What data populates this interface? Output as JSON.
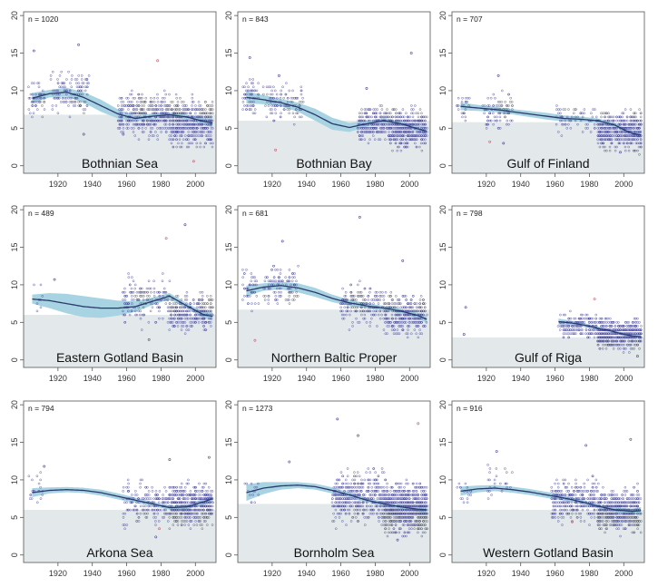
{
  "colors": {
    "background_band": "#e3e9ea",
    "ci_band": "#a7d3e3",
    "trend_line": "#2b3a6b",
    "points": "#4a4a9a",
    "points_highlight": "#c06070",
    "frame": "#555555"
  },
  "chart_data": [
    {
      "type": "scatter",
      "title": "Bothnian Sea",
      "n_label": "n =",
      "n": "1020",
      "xlim": [
        1900,
        2012
      ],
      "ylim": [
        -1,
        20.5
      ],
      "xticks": [
        1920,
        1940,
        1960,
        1980,
        2000
      ],
      "yticks": [
        0,
        5,
        10,
        15,
        20
      ],
      "band_level": 6.8,
      "trend": {
        "x": [
          1905,
          1915,
          1925,
          1935,
          1945,
          1955,
          1965,
          1975,
          1985,
          1995,
          2005,
          2010
        ],
        "y": [
          9.0,
          9.6,
          9.8,
          9.1,
          8.0,
          6.9,
          6.3,
          6.6,
          6.8,
          6.5,
          5.9,
          5.7
        ],
        "ci": [
          0.7,
          0.5,
          0.6,
          0.7,
          0.8,
          0.6,
          0.4,
          0.35,
          0.3,
          0.3,
          0.45,
          0.6
        ]
      },
      "points": {
        "clusters": [
          [
            1903,
            1912,
            9.0,
            1.4,
            55
          ],
          [
            1915,
            1938,
            9.8,
            1.8,
            130
          ],
          [
            1955,
            1985,
            6.8,
            1.8,
            380
          ],
          [
            1985,
            2010,
            5.7,
            2.1,
            460
          ]
        ],
        "outliers": [
          [
            1906,
            15.3
          ],
          [
            1932,
            16.1
          ],
          [
            1978,
            14.0
          ],
          [
            1935,
            4.2
          ],
          [
            1958,
            4.2
          ],
          [
            1999,
            0.6
          ]
        ]
      }
    },
    {
      "type": "scatter",
      "title": "Bothnian Bay",
      "n_label": "n =",
      "n": "843",
      "xlim": [
        1900,
        2012
      ],
      "ylim": [
        -1,
        20.5
      ],
      "xticks": [
        1920,
        1940,
        1960,
        1980,
        2000
      ],
      "yticks": [
        0,
        5,
        10,
        15,
        20
      ],
      "band_level": 6.0,
      "trend": {
        "x": [
          1905,
          1915,
          1925,
          1935,
          1945,
          1955,
          1965,
          1975,
          1985,
          1995,
          2005,
          2010
        ],
        "y": [
          9.1,
          8.8,
          8.4,
          7.8,
          6.8,
          5.6,
          5.1,
          5.6,
          6.0,
          5.6,
          4.9,
          4.6
        ],
        "ci": [
          0.8,
          0.6,
          0.5,
          0.6,
          0.8,
          0.8,
          0.6,
          0.4,
          0.35,
          0.3,
          0.4,
          0.6
        ]
      },
      "points": {
        "clusters": [
          [
            1903,
            1912,
            9.3,
            2.0,
            60
          ],
          [
            1915,
            1938,
            8.5,
            1.8,
            110
          ],
          [
            1970,
            1988,
            5.6,
            1.5,
            220
          ],
          [
            1988,
            2010,
            4.9,
            1.7,
            420
          ]
        ],
        "outliers": [
          [
            1907,
            14.4
          ],
          [
            1924,
            12.0
          ],
          [
            1922,
            2.1
          ],
          [
            2001,
            15.0
          ],
          [
            1975,
            10.3
          ]
        ]
      }
    },
    {
      "type": "scatter",
      "title": "Gulf of Finland",
      "n_label": "n =",
      "n": "707",
      "xlim": [
        1900,
        2012
      ],
      "ylim": [
        -1,
        20.5
      ],
      "xticks": [
        1920,
        1940,
        1960,
        1980,
        2000
      ],
      "yticks": [
        0,
        5,
        10,
        15,
        20
      ],
      "band_level": 5.8,
      "trend": {
        "x": [
          1905,
          1915,
          1925,
          1935,
          1945,
          1955,
          1965,
          1975,
          1985,
          1995,
          2000,
          2005,
          2010
        ],
        "y": [
          7.9,
          7.7,
          7.5,
          7.2,
          6.9,
          6.6,
          6.3,
          6.2,
          6.0,
          5.4,
          4.8,
          4.3,
          4.1
        ],
        "ci": [
          0.5,
          0.4,
          0.35,
          0.35,
          0.4,
          0.45,
          0.4,
          0.35,
          0.3,
          0.3,
          0.3,
          0.35,
          0.5
        ]
      },
      "points": {
        "clusters": [
          [
            1903,
            1910,
            8.0,
            1.3,
            25
          ],
          [
            1918,
            1935,
            7.2,
            1.7,
            95
          ],
          [
            1960,
            1985,
            6.1,
            1.2,
            70
          ],
          [
            1985,
            2010,
            4.7,
            1.6,
            470
          ]
        ],
        "outliers": [
          [
            1927,
            12.0
          ],
          [
            1930,
            3.0
          ],
          [
            1922,
            3.2
          ],
          [
            1998,
            1.8
          ]
        ]
      }
    },
    {
      "type": "scatter",
      "title": "Eastern Gotland Basin",
      "n_label": "n =",
      "n": "489",
      "xlim": [
        1900,
        2012
      ],
      "ylim": [
        -1,
        20.5
      ],
      "xticks": [
        1920,
        1940,
        1960,
        1980,
        2000
      ],
      "yticks": [
        0,
        5,
        10,
        15,
        20
      ],
      "band_level": 6.0,
      "trend": {
        "x": [
          1905,
          1915,
          1925,
          1935,
          1945,
          1955,
          1965,
          1975,
          1985,
          1995,
          2005,
          2010
        ],
        "y": [
          8.1,
          7.9,
          7.5,
          7.1,
          6.9,
          6.9,
          7.1,
          7.8,
          8.5,
          7.2,
          6.0,
          5.8
        ],
        "ci": [
          0.6,
          1.0,
          1.3,
          1.4,
          1.3,
          1.0,
          0.7,
          0.5,
          0.4,
          0.35,
          0.4,
          0.55
        ]
      },
      "points": {
        "clusters": [
          [
            1905,
            1912,
            8.0,
            1.2,
            8
          ],
          [
            1958,
            1985,
            8.0,
            2.0,
            160
          ],
          [
            1985,
            2010,
            6.2,
            1.5,
            300
          ]
        ],
        "outliers": [
          [
            1918,
            10.7
          ],
          [
            1994,
            18.0
          ],
          [
            1983,
            16.2
          ],
          [
            1973,
            2.7
          ]
        ]
      }
    },
    {
      "type": "scatter",
      "title": "Northern Baltic Proper",
      "n_label": "n =",
      "n": "681",
      "xlim": [
        1900,
        2012
      ],
      "ylim": [
        -1,
        20.5
      ],
      "xticks": [
        1920,
        1940,
        1960,
        1980,
        2000
      ],
      "yticks": [
        0,
        5,
        10,
        15,
        20
      ],
      "band_level": 6.7,
      "trend": {
        "x": [
          1905,
          1915,
          1925,
          1935,
          1945,
          1955,
          1965,
          1975,
          1985,
          1995,
          2005,
          2010
        ],
        "y": [
          9.2,
          9.7,
          9.9,
          9.6,
          9.0,
          8.2,
          7.6,
          7.2,
          6.9,
          6.5,
          5.9,
          5.4
        ],
        "ci": [
          0.7,
          0.5,
          0.5,
          0.6,
          0.6,
          0.5,
          0.4,
          0.35,
          0.3,
          0.3,
          0.35,
          0.5
        ]
      },
      "points": {
        "clusters": [
          [
            1903,
            1912,
            9.5,
            1.8,
            45
          ],
          [
            1915,
            1935,
            10.0,
            1.8,
            110
          ],
          [
            1960,
            1985,
            7.5,
            1.8,
            190
          ],
          [
            1985,
            2010,
            6.0,
            1.7,
            330
          ]
        ],
        "outliers": [
          [
            1971,
            19.0
          ],
          [
            1926,
            15.8
          ],
          [
            1910,
            2.6
          ],
          [
            1996,
            13.2
          ]
        ]
      }
    },
    {
      "type": "scatter",
      "title": "Gulf of Riga",
      "n_label": "n =",
      "n": "798",
      "xlim": [
        1900,
        2012
      ],
      "ylim": [
        -1,
        20.5
      ],
      "xticks": [
        1920,
        1940,
        1960,
        1980,
        2000
      ],
      "yticks": [
        0,
        5,
        10,
        15,
        20
      ],
      "band_level": 3.0,
      "trend": {
        "x": [
          1962,
          1970,
          1978,
          1985,
          1992,
          2000,
          2005,
          2010
        ],
        "y": [
          5.1,
          4.9,
          4.6,
          4.2,
          3.9,
          3.4,
          3.2,
          3.1
        ],
        "ci": [
          0.4,
          0.3,
          0.25,
          0.25,
          0.2,
          0.2,
          0.25,
          0.35
        ]
      },
      "points": {
        "clusters": [
          [
            1962,
            1985,
            4.6,
            1.1,
            180
          ],
          [
            1985,
            2010,
            3.4,
            1.2,
            560
          ]
        ],
        "outliers": [
          [
            1908,
            7.0
          ],
          [
            1907,
            3.4
          ],
          [
            1983,
            8.1
          ],
          [
            2008,
            0.5
          ]
        ]
      }
    },
    {
      "type": "scatter",
      "title": "Arkona Sea",
      "n_label": "n =",
      "n": "794",
      "xlim": [
        1900,
        2012
      ],
      "ylim": [
        -1,
        20.5
      ],
      "xticks": [
        1920,
        1940,
        1960,
        1980,
        2000
      ],
      "yticks": [
        0,
        5,
        10,
        15,
        20
      ],
      "band_level": 6.0,
      "trend": {
        "x": [
          1905,
          1915,
          1925,
          1935,
          1945,
          1955,
          1965,
          1975,
          1985,
          1995,
          2005,
          2010
        ],
        "y": [
          8.3,
          8.6,
          8.7,
          8.6,
          8.3,
          7.8,
          7.3,
          6.8,
          6.3,
          6.4,
          7.1,
          7.5
        ],
        "ci": [
          0.6,
          0.4,
          0.35,
          0.35,
          0.4,
          0.4,
          0.35,
          0.3,
          0.3,
          0.3,
          0.4,
          0.5
        ]
      },
      "points": {
        "clusters": [
          [
            1903,
            1912,
            8.5,
            1.3,
            20
          ],
          [
            1958,
            1985,
            6.8,
            1.8,
            180
          ],
          [
            1985,
            2010,
            6.7,
            1.8,
            500
          ]
        ],
        "outliers": [
          [
            1912,
            11.8
          ],
          [
            1977,
            2.4
          ],
          [
            1979,
            3.5
          ],
          [
            2008,
            13.0
          ],
          [
            1985,
            12.7
          ]
        ]
      }
    },
    {
      "type": "scatter",
      "title": "Bornholm Sea",
      "n_label": "n =",
      "n": "1273",
      "xlim": [
        1900,
        2012
      ],
      "ylim": [
        -1,
        20.5
      ],
      "xticks": [
        1920,
        1940,
        1960,
        1980,
        2000
      ],
      "yticks": [
        0,
        5,
        10,
        15,
        20
      ],
      "band_level": 6.8,
      "trend": {
        "x": [
          1905,
          1915,
          1925,
          1935,
          1945,
          1955,
          1965,
          1975,
          1985,
          1995,
          2005,
          2010
        ],
        "y": [
          8.3,
          8.9,
          9.2,
          9.3,
          9.1,
          8.6,
          8.0,
          7.3,
          6.8,
          6.4,
          6.1,
          6.0
        ],
        "ci": [
          1.1,
          0.8,
          0.5,
          0.4,
          0.4,
          0.4,
          0.35,
          0.3,
          0.3,
          0.3,
          0.35,
          0.5
        ]
      },
      "points": {
        "clusters": [
          [
            1903,
            1912,
            8.6,
            1.3,
            15
          ],
          [
            1955,
            1985,
            7.7,
            2.2,
            420
          ],
          [
            1985,
            2010,
            6.2,
            2.0,
            780
          ]
        ],
        "outliers": [
          [
            1930,
            12.4
          ],
          [
            1958,
            18.1
          ],
          [
            2005,
            17.5
          ],
          [
            1993,
            2.0
          ],
          [
            1970,
            15.9
          ]
        ]
      }
    },
    {
      "type": "scatter",
      "title": "Western Gotland Basin",
      "n_label": "n =",
      "n": "916",
      "xlim": [
        1900,
        2012
      ],
      "ylim": [
        -1,
        20.5
      ],
      "xticks": [
        1920,
        1940,
        1960,
        1980,
        2000
      ],
      "yticks": [
        0,
        5,
        10,
        15,
        20
      ],
      "band_level": 6.0,
      "trend": {
        "x": [
          1905,
          1915,
          1925,
          1935,
          1945,
          1955,
          1965,
          1975,
          1985,
          1995,
          2005,
          2010
        ],
        "y": [
          8.5,
          8.8,
          8.9,
          8.7,
          8.4,
          8.0,
          7.6,
          7.1,
          6.5,
          6.0,
          5.8,
          5.9
        ],
        "ci": [
          0.6,
          0.45,
          0.4,
          0.4,
          0.4,
          0.4,
          0.35,
          0.3,
          0.3,
          0.3,
          0.35,
          0.5
        ]
      },
      "points": {
        "clusters": [
          [
            1903,
            1912,
            8.5,
            1.3,
            18
          ],
          [
            1920,
            1935,
            9.5,
            1.8,
            25
          ],
          [
            1958,
            1985,
            7.2,
            1.9,
            300
          ],
          [
            1985,
            2010,
            5.9,
            1.8,
            560
          ]
        ],
        "outliers": [
          [
            1926,
            13.8
          ],
          [
            1978,
            14.6
          ],
          [
            1970,
            4.4
          ],
          [
            2004,
            15.4
          ]
        ]
      }
    }
  ]
}
